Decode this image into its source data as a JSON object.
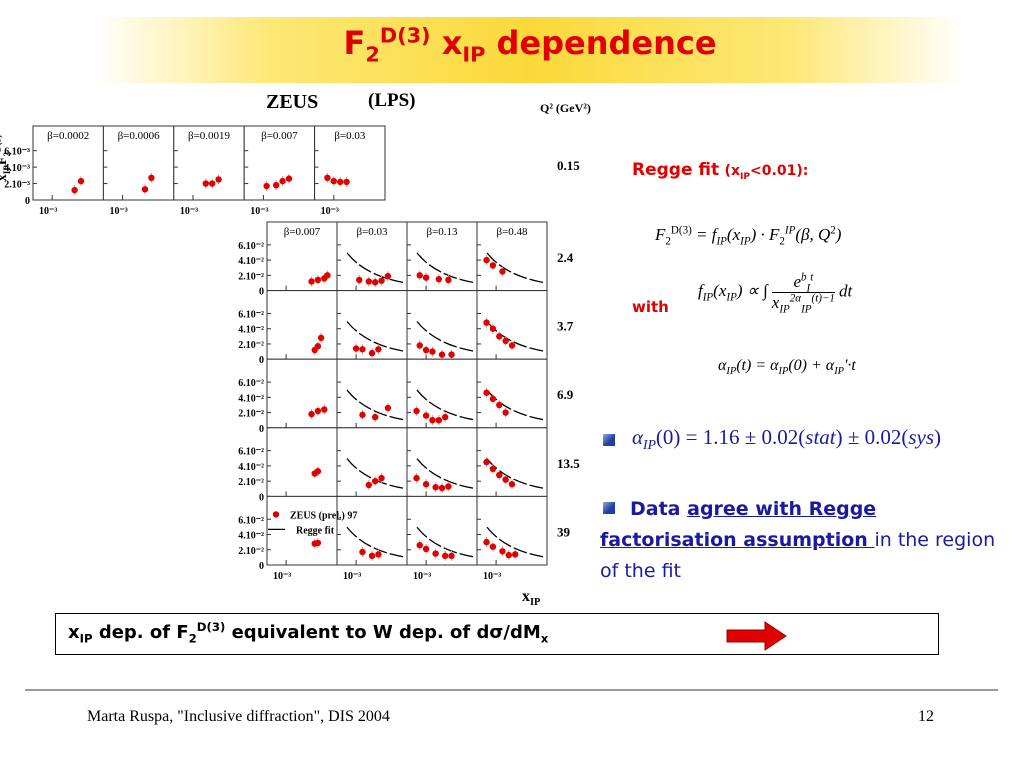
{
  "title": [
    {
      "t": "F",
      "s": "r"
    },
    {
      "t": "2",
      "s": "sub"
    },
    {
      "t": "D(3)",
      "s": "sup"
    },
    {
      "t": " x",
      "s": "r"
    },
    {
      "t": "IP",
      "s": "sub"
    },
    {
      "t": " dependence",
      "s": "r"
    }
  ],
  "figure": {
    "experiment": "ZEUS",
    "tag": "(LPS)",
    "q2_header": "Q² (GeV²)",
    "y_axis": [
      {
        "t": "x",
        "s": "r"
      },
      {
        "t": "IP",
        "s": "sub"
      },
      {
        "t": "F",
        "s": "r"
      },
      {
        "t": "2",
        "s": "sub"
      },
      {
        "t": "D(3)",
        "s": "sup"
      }
    ],
    "x_axis": [
      {
        "t": "x",
        "s": "r"
      },
      {
        "t": "IP",
        "s": "sub"
      }
    ],
    "legend": [
      "ZEUS (prel.) 97",
      "Regge fit"
    ],
    "xlim": [
      -3.6,
      -1.4
    ],
    "xticks": [
      {
        "value": -3,
        "label": "10⁻³"
      }
    ],
    "top": {
      "q2": "0.15",
      "ylim": [
        0,
        9
      ],
      "yticks": [
        0,
        {
          "value": 2,
          "label": "2.10⁻³"
        },
        {
          "value": 4,
          "label": "4.10⁻³"
        },
        {
          "value": 6,
          "label": "6.10⁻³"
        }
      ],
      "panels": [
        {
          "beta": "β=0.0002",
          "x": [
            -2.3,
            -2.1
          ],
          "y": [
            1.2,
            2.3
          ]
        },
        {
          "beta": "β=0.0006",
          "x": [
            -2.3,
            -2.1
          ],
          "y": [
            1.3,
            2.7
          ]
        },
        {
          "beta": "β=0.0019",
          "x": [
            -2.6,
            -2.4,
            -2.2
          ],
          "y": [
            2.0,
            2.0,
            2.5
          ]
        },
        {
          "beta": "β=0.007",
          "x": [
            -2.9,
            -2.6,
            -2.4,
            -2.2
          ],
          "y": [
            1.7,
            1.8,
            2.3,
            2.6
          ]
        },
        {
          "beta": "β=0.03",
          "x": [
            -3.2,
            -3.0,
            -2.8,
            -2.6
          ],
          "y": [
            2.7,
            2.3,
            2.2,
            2.2
          ]
        }
      ]
    },
    "grid": {
      "ylim": [
        0,
        9
      ],
      "yticks": [
        0,
        {
          "value": 2,
          "label": "2.10⁻²"
        },
        {
          "value": 4,
          "label": "4.10⁻²"
        },
        {
          "value": 6,
          "label": "6.10⁻²"
        }
      ],
      "betas": [
        "β=0.007",
        "β=0.03",
        "β=0.13",
        "β=0.48"
      ],
      "rows": [
        {
          "q2": "2.4",
          "panels": [
            {
              "x": [
                -2.2,
                -2.0,
                -1.8,
                -1.7
              ],
              "y": [
                1.2,
                1.4,
                1.6,
                2.0
              ],
              "fit": false
            },
            {
              "x": [
                -2.9,
                -2.6,
                -2.4,
                -2.2,
                -2.0
              ],
              "y": [
                1.4,
                1.2,
                1.1,
                1.3,
                1.9
              ],
              "fit": true
            },
            {
              "x": [
                -3.2,
                -3.0,
                -2.6,
                -2.3
              ],
              "y": [
                2.0,
                1.7,
                1.5,
                1.4
              ],
              "fit": true
            },
            {
              "x": [
                -3.3,
                -3.1,
                -2.8
              ],
              "y": [
                4.0,
                3.3,
                2.5
              ],
              "fit": true
            }
          ]
        },
        {
          "q2": "3.7",
          "panels": [
            {
              "x": [
                -2.1,
                -2.0,
                -1.9
              ],
              "y": [
                1.2,
                1.7,
                2.8
              ],
              "fit": false
            },
            {
              "x": [
                -3.0,
                -2.8,
                -2.5,
                -2.3
              ],
              "y": [
                1.4,
                1.3,
                0.8,
                1.3
              ],
              "fit": true
            },
            {
              "x": [
                -3.2,
                -3.0,
                -2.8,
                -2.5,
                -2.2
              ],
              "y": [
                1.8,
                1.2,
                1.0,
                0.6,
                0.6
              ],
              "fit": true
            },
            {
              "x": [
                -3.3,
                -3.1,
                -2.9,
                -2.7,
                -2.5
              ],
              "y": [
                4.8,
                4.0,
                3.0,
                2.4,
                1.8
              ],
              "fit": true
            }
          ]
        },
        {
          "q2": "6.9",
          "panels": [
            {
              "x": [
                -2.2,
                -2.0,
                -1.8
              ],
              "y": [
                1.8,
                2.2,
                2.4
              ],
              "fit": false
            },
            {
              "x": [
                -2.8,
                -2.4,
                -2.0
              ],
              "y": [
                1.7,
                1.4,
                2.6
              ],
              "fit": true
            },
            {
              "x": [
                -3.3,
                -3.0,
                -2.8,
                -2.6,
                -2.4
              ],
              "y": [
                2.2,
                1.6,
                1.0,
                1.0,
                1.4
              ],
              "fit": true
            },
            {
              "x": [
                -3.3,
                -3.1,
                -2.9,
                -2.7
              ],
              "y": [
                4.6,
                3.8,
                3.0,
                2.0
              ],
              "fit": true
            }
          ]
        },
        {
          "q2": "13.5",
          "panels": [
            {
              "x": [
                -2.1,
                -2.0
              ],
              "y": [
                3.0,
                3.3
              ],
              "fit": false
            },
            {
              "x": [
                -2.6,
                -2.4,
                -2.2
              ],
              "y": [
                1.5,
                2.0,
                2.4
              ],
              "fit": true
            },
            {
              "x": [
                -3.3,
                -3.0,
                -2.7,
                -2.5,
                -2.3
              ],
              "y": [
                2.4,
                1.6,
                1.2,
                1.1,
                1.3
              ],
              "fit": true
            },
            {
              "x": [
                -3.3,
                -3.1,
                -2.9,
                -2.7,
                -2.5
              ],
              "y": [
                4.5,
                3.6,
                2.8,
                2.2,
                1.6
              ],
              "fit": true
            }
          ]
        },
        {
          "q2": "39",
          "panels": [
            {
              "x": [
                -2.1,
                -2.0
              ],
              "y": [
                2.8,
                2.9
              ],
              "fit": false
            },
            {
              "x": [
                -2.8,
                -2.5,
                -2.3
              ],
              "y": [
                1.7,
                1.2,
                1.4
              ],
              "fit": true
            },
            {
              "x": [
                -3.2,
                -3.0,
                -2.7,
                -2.4,
                -2.2
              ],
              "y": [
                2.6,
                2.1,
                1.5,
                1.2,
                1.2
              ],
              "fit": true
            },
            {
              "x": [
                -3.3,
                -3.1,
                -2.8,
                -2.6,
                -2.4
              ],
              "y": [
                3.0,
                2.4,
                1.8,
                1.3,
                1.4
              ],
              "fit": true
            }
          ]
        }
      ]
    }
  },
  "regge": {
    "heading": "Regge fit",
    "condition": [
      {
        "t": "(x",
        "s": "r"
      },
      {
        "t": "IP",
        "s": "sub"
      },
      {
        "t": "<0.01):",
        "s": "r"
      }
    ],
    "formula1": [
      {
        "t": "F",
        "s": "i"
      },
      {
        "t": "2",
        "s": "sub"
      },
      {
        "t": "D(3)",
        "s": "sup"
      },
      {
        "t": " = f",
        "s": "i"
      },
      {
        "t": "IP",
        "s": "isub"
      },
      {
        "t": "(x",
        "s": "i"
      },
      {
        "t": "IP",
        "s": "isub"
      },
      {
        "t": ") · F",
        "s": "i"
      },
      {
        "t": "2",
        "s": "sub"
      },
      {
        "t": "IP",
        "s": "isup"
      },
      {
        "t": "(β, Q",
        "s": "i"
      },
      {
        "t": "2",
        "s": "sup"
      },
      {
        "t": ")",
        "s": "i"
      }
    ],
    "with": "with",
    "formula2": {
      "lhs": [
        {
          "t": "f",
          "s": "i"
        },
        {
          "t": "IP",
          "s": "isub"
        },
        {
          "t": "(x",
          "s": "i"
        },
        {
          "t": "IP",
          "s": "isub"
        },
        {
          "t": ") ∝ ∫",
          "s": "i"
        }
      ],
      "num": [
        {
          "t": "e",
          "s": "i"
        },
        {
          "t": "b",
          "s": "isup"
        },
        {
          "t": "I",
          "s": "isub"
        },
        {
          "t": "t",
          "s": "isup"
        }
      ],
      "den": [
        {
          "t": "x",
          "s": "i"
        },
        {
          "t": "IP",
          "s": "isub"
        },
        {
          "t": "2α",
          "s": "isup"
        },
        {
          "t": "IP",
          "s": "isub"
        },
        {
          "t": "(t)−1",
          "s": "isup"
        }
      ],
      "tail": [
        {
          "t": "dt",
          "s": "i"
        }
      ]
    },
    "formula3": [
      {
        "t": "α",
        "s": "i"
      },
      {
        "t": "IP",
        "s": "isub"
      },
      {
        "t": "(t) = α",
        "s": "i"
      },
      {
        "t": "IP",
        "s": "isub"
      },
      {
        "t": "(0) + α",
        "s": "i"
      },
      {
        "t": "IP",
        "s": "isub"
      },
      {
        "t": "'·t",
        "s": "i"
      }
    ]
  },
  "result": [
    {
      "t": "α",
      "s": "i"
    },
    {
      "t": "IP",
      "s": "isub"
    },
    {
      "t": "(0) = 1.16 ± 0.02(",
      "s": "r"
    },
    {
      "t": "stat",
      "s": "i"
    },
    {
      "t": ") ± 0.02(",
      "s": "r"
    },
    {
      "t": "sys",
      "s": "i"
    },
    {
      "t": ")",
      "s": "r"
    }
  ],
  "conclusion": {
    "start": "Data ",
    "link": "agree with Regge factorisation assumption ",
    "end": "in the region of the fit"
  },
  "box": [
    {
      "t": "x",
      "s": "r"
    },
    {
      "t": "IP",
      "s": "sub"
    },
    {
      "t": " dep. of F",
      "s": "r"
    },
    {
      "t": "2",
      "s": "sub"
    },
    {
      "t": "D(3)",
      "s": "sup"
    },
    {
      "t": " equivalent to W dep. of dσ/dM",
      "s": "r"
    },
    {
      "t": "x",
      "s": "sub"
    }
  ],
  "footer": {
    "text": "Marta Ruspa, \"Inclusive diffraction\", DIS 2004",
    "page": "12"
  }
}
